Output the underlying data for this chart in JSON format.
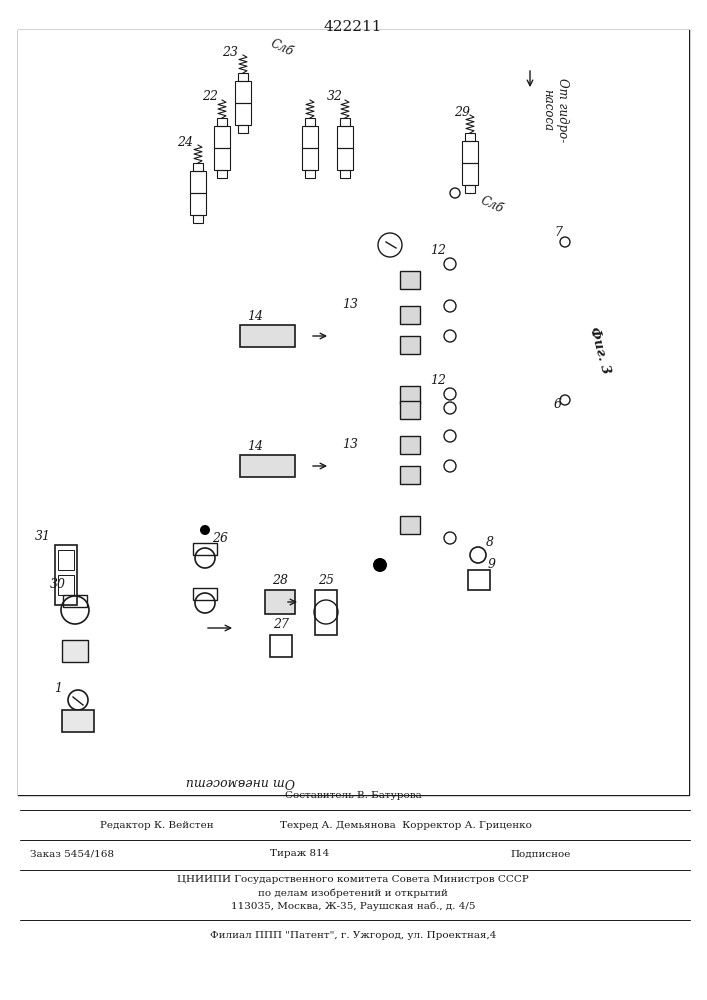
{
  "patent_number": "422211",
  "footer": {
    "line1_center": "Составитель В. Батурова",
    "line2_left": "Редактор К. Вейстен",
    "line2_center": "Техред А. Демьянова  Корректор А. Гриценко",
    "line3_left": "Заказ 5454/168",
    "line3_center": "Тираж 814",
    "line3_right": "Подписное",
    "line4": "ЦНИИПИ Государственного комитета Совета Министров СССР",
    "line5": "по делам изобретений и открытий",
    "line6": "113035, Москва, Ж-35, Раушская наб., д. 4/5",
    "line7": "Филиал ППП \"Патент\", г. Ужгород, ул. Проектная,4"
  },
  "bg_color": "#ffffff",
  "line_color": "#1a1a1a"
}
